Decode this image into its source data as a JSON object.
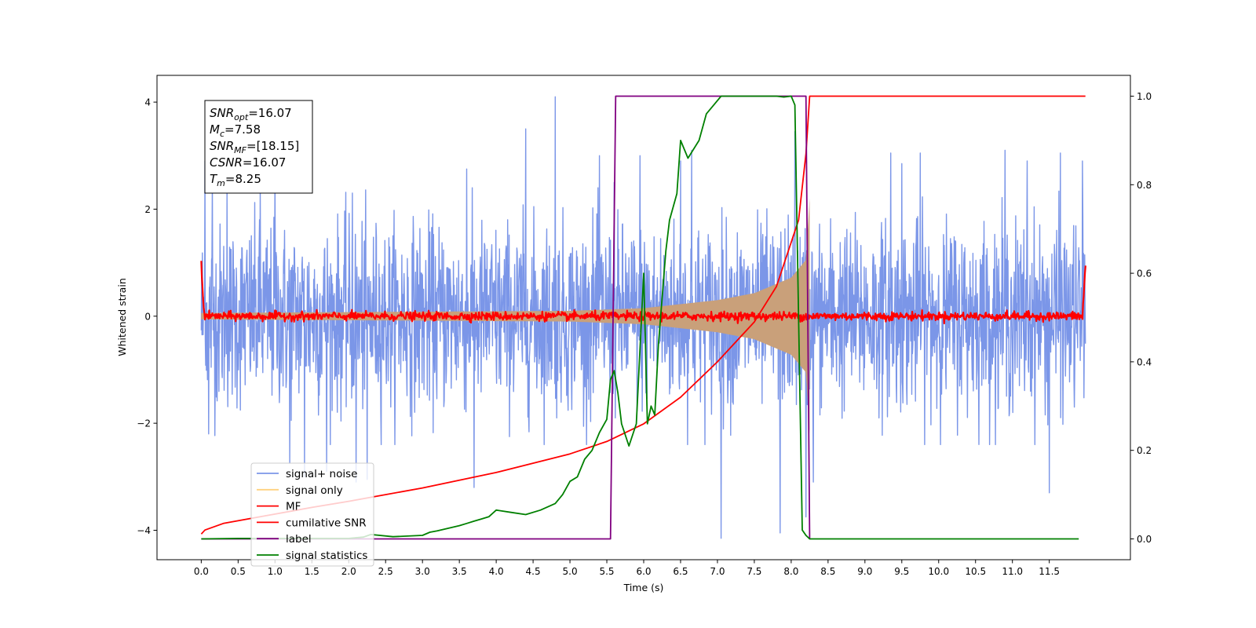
{
  "chart_data": {
    "type": "line",
    "xlabel": "Time (s)",
    "ylabel": "Whitened strain",
    "xlim": [
      -0.6,
      12.6
    ],
    "ylim": [
      -4.55,
      4.5
    ],
    "y2lim": [
      -0.047,
      1.047
    ],
    "grid": false,
    "legend_position": "lower-left",
    "x_ticks": [
      0.0,
      0.5,
      1.0,
      1.5,
      2.0,
      2.5,
      3.0,
      3.5,
      4.0,
      4.5,
      5.0,
      5.5,
      6.0,
      6.5,
      7.0,
      7.5,
      8.0,
      8.5,
      9.0,
      9.5,
      10.0,
      10.5,
      11.0,
      11.5
    ],
    "x_tick_labels": [
      "0.0",
      "0.5",
      "1.0",
      "1.5",
      "2.0",
      "2.5",
      "3.0",
      "3.5",
      "4.0",
      "4.5",
      "5.0",
      "5.5",
      "6.0",
      "6.5",
      "7.0",
      "7.5",
      "8.0",
      "8.5",
      "9.0",
      "9.5",
      "10.0",
      "10.5",
      "11.0",
      "11.5"
    ],
    "y_ticks": [
      -4,
      -2,
      0,
      2,
      4
    ],
    "y_tick_labels": [
      "−4",
      "−2",
      "0",
      "2",
      "4"
    ],
    "y2_ticks": [
      0.0,
      0.2,
      0.4,
      0.6,
      0.8,
      1.0
    ],
    "y2_tick_labels": [
      "0.0",
      "0.2",
      "0.4",
      "0.6",
      "0.8",
      "1.0"
    ],
    "annotation": {
      "snr_opt": {
        "sym": "SNR",
        "sub": "opt",
        "val": "=16.07"
      },
      "mc": {
        "sym": "M",
        "sub": "c",
        "val": "=7.58"
      },
      "snr_mf": {
        "sym": "SNR",
        "sub": "MF",
        "val": "=[18.15]"
      },
      "csnr": {
        "sym": "CSNR",
        "sub": "",
        "val": "=16.07"
      },
      "tm": {
        "sym": "T",
        "sub": "m",
        "val": "=8.25"
      }
    },
    "series": [
      {
        "name": "signal+ noise",
        "color": "#7b96e8",
        "axis": "left",
        "style": "noise",
        "x_range": [
          0.0,
          11.99
        ],
        "sigma": 0.85,
        "sample_rate": 200,
        "extremes": [
          [
            0.05,
            2.9
          ],
          [
            0.1,
            -2.2
          ],
          [
            0.15,
            2.5
          ],
          [
            0.35,
            2.4
          ],
          [
            0.8,
            2.45
          ],
          [
            1.0,
            2.7
          ],
          [
            1.2,
            -2.75
          ],
          [
            1.4,
            -3.0
          ],
          [
            1.7,
            -2.9
          ],
          [
            2.05,
            2.3
          ],
          [
            2.1,
            -3.1
          ],
          [
            2.25,
            -3.05
          ],
          [
            3.6,
            2.75
          ],
          [
            3.7,
            -3.2
          ],
          [
            4.4,
            3.5
          ],
          [
            4.8,
            4.1
          ],
          [
            5.4,
            3.0
          ],
          [
            5.6,
            2.5
          ],
          [
            5.95,
            3.0
          ],
          [
            6.5,
            2.9
          ],
          [
            6.5,
            -3.5
          ],
          [
            6.65,
            3.1
          ],
          [
            7.05,
            -4.15
          ],
          [
            7.85,
            -4.05
          ],
          [
            8.05,
            3.45
          ],
          [
            8.2,
            -3.75
          ],
          [
            8.3,
            -3.1
          ],
          [
            9.35,
            3.05
          ],
          [
            9.5,
            2.85
          ],
          [
            9.75,
            3.05
          ],
          [
            10.9,
            3.1
          ],
          [
            11.2,
            2.9
          ],
          [
            11.5,
            -3.3
          ],
          [
            11.65,
            3.05
          ],
          [
            11.95,
            2.9
          ]
        ]
      },
      {
        "name": "signal only",
        "color": "#c9a07a",
        "legend_color": "#ffd27f",
        "axis": "left",
        "style": "chirp",
        "x_range": [
          0.0,
          8.25
        ],
        "envelope": [
          [
            0.0,
            0.06
          ],
          [
            5.0,
            0.1
          ],
          [
            6.0,
            0.15
          ],
          [
            7.0,
            0.3
          ],
          [
            7.5,
            0.43
          ],
          [
            8.0,
            0.72
          ],
          [
            8.2,
            1.05
          ],
          [
            8.25,
            2.2
          ]
        ]
      },
      {
        "name": "MF",
        "color": "#ff0000",
        "axis": "left",
        "style": "mf",
        "x_range": [
          0.0,
          11.99
        ],
        "sigma": 0.04,
        "spikes": [
          [
            0.0,
            1.0
          ],
          [
            11.99,
            0.93
          ]
        ]
      },
      {
        "name": "cumilative SNR",
        "color": "#ff0000",
        "axis": "right",
        "x": [
          0.0,
          0.05,
          0.3,
          0.8,
          1.5,
          2.0,
          3.0,
          4.0,
          5.0,
          5.5,
          6.0,
          6.5,
          7.0,
          7.5,
          7.8,
          8.0,
          8.1,
          8.2,
          8.25,
          8.26,
          11.99
        ],
        "y": [
          0.011,
          0.02,
          0.035,
          0.05,
          0.071,
          0.085,
          0.115,
          0.15,
          0.192,
          0.22,
          0.26,
          0.32,
          0.4,
          0.49,
          0.57,
          0.67,
          0.72,
          0.87,
          1.0,
          1.0,
          1.0
        ]
      },
      {
        "name": "label",
        "color": "#800080",
        "axis": "right",
        "x": [
          0.0,
          5.55,
          5.62,
          8.2,
          8.25
        ],
        "y": [
          0.0,
          0.0,
          1.0,
          1.0,
          0.0
        ]
      },
      {
        "name": "signal statistics",
        "color": "#008000",
        "axis": "right",
        "x": [
          0.0,
          0.5,
          1.0,
          1.5,
          2.0,
          2.2,
          2.3,
          2.6,
          3.0,
          3.1,
          3.2,
          3.5,
          3.6,
          3.7,
          3.8,
          3.9,
          4.0,
          4.2,
          4.4,
          4.6,
          4.8,
          4.9,
          5.0,
          5.1,
          5.2,
          5.3,
          5.4,
          5.5,
          5.55,
          5.6,
          5.65,
          5.7,
          5.8,
          5.9,
          6.0,
          6.05,
          6.1,
          6.15,
          6.2,
          6.3,
          6.35,
          6.4,
          6.45,
          6.5,
          6.6,
          6.75,
          6.85,
          6.95,
          7.05,
          7.2,
          7.5,
          7.8,
          7.9,
          8.0,
          8.05,
          8.1,
          8.15,
          8.2,
          8.25,
          11.9
        ],
        "y": [
          0.0,
          0.001,
          0.001,
          0.001,
          0.001,
          0.004,
          0.01,
          0.005,
          0.008,
          0.015,
          0.018,
          0.03,
          0.035,
          0.04,
          0.045,
          0.05,
          0.065,
          0.06,
          0.055,
          0.065,
          0.08,
          0.1,
          0.13,
          0.14,
          0.18,
          0.2,
          0.24,
          0.27,
          0.36,
          0.38,
          0.33,
          0.26,
          0.21,
          0.26,
          0.6,
          0.26,
          0.3,
          0.28,
          0.44,
          0.65,
          0.72,
          0.75,
          0.78,
          0.9,
          0.86,
          0.9,
          0.96,
          0.98,
          1.0,
          1.0,
          1.0,
          1.0,
          0.998,
          1.0,
          0.98,
          0.5,
          0.02,
          0.008,
          0.0,
          0.0
        ]
      }
    ]
  }
}
